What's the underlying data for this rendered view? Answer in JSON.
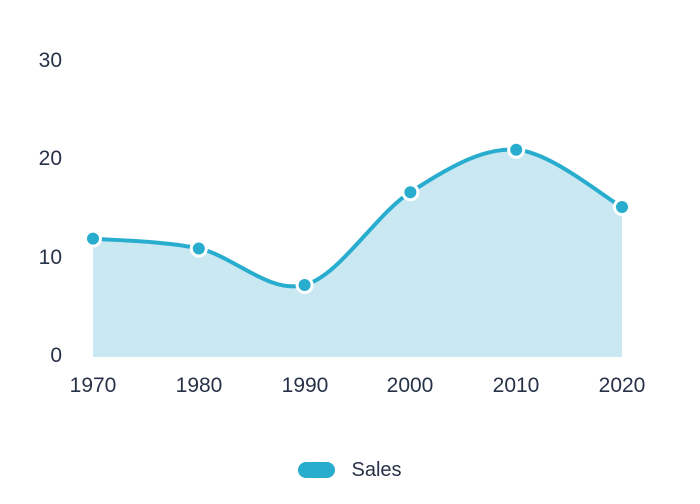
{
  "chart_data": {
    "type": "area",
    "title": "",
    "xlabel": "",
    "ylabel": "",
    "categories": [
      "1970",
      "1980",
      "1990",
      "2000",
      "2010",
      "2020"
    ],
    "series": [
      {
        "name": "Sales",
        "values": [
          12,
          11,
          7.3,
          16.7,
          21,
          15.2
        ]
      }
    ],
    "ylim": [
      0,
      30
    ],
    "yticks": [
      "0",
      "10",
      "20",
      "30"
    ],
    "grid": false,
    "smooth": true,
    "legend_position": "bottom",
    "colors": {
      "line": "#29ADCE",
      "area_fill": "#CAE8F2",
      "marker_fill": "#29ADCE",
      "marker_stroke": "#FFFFFF",
      "label": "#273248",
      "background": "#FFFFFF"
    }
  }
}
